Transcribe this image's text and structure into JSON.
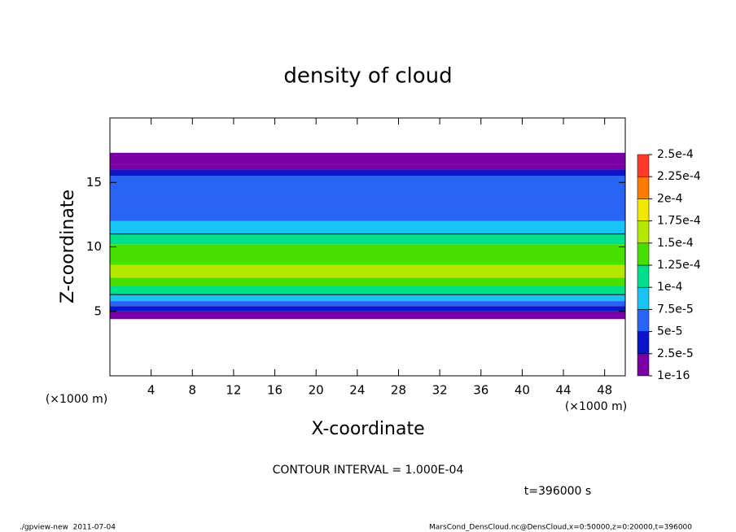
{
  "chart_data": {
    "type": "contour",
    "title": "density of cloud",
    "x_label": "X-coordinate",
    "y_label": "Z-coordinate",
    "x_unit": "(×1000 m)",
    "y_unit": "(×1000 m)",
    "contour_note": "CONTOUR INTERVAL = 1.000E-04",
    "time_label": "t=396000 s",
    "footer_left": "./gpview-new  2011-07-04",
    "footer_right": "MarsCond_DensCloud.nc@DensCloud,x=0:50000,z=0:20000,t=396000",
    "xlim": [
      0,
      50
    ],
    "xticks": [
      4,
      8,
      12,
      16,
      20,
      24,
      28,
      32,
      36,
      40,
      44,
      48
    ],
    "ylim": [
      0,
      20
    ],
    "yticks": [
      5,
      10,
      15
    ],
    "y_edges": [
      4.4,
      5.0,
      5.4,
      5.8,
      6.3,
      7.0,
      7.6,
      8.6,
      9.4,
      10.2,
      11.0,
      12.0,
      13.5,
      15.5,
      16.0,
      16.4,
      17.3
    ],
    "values": [
      1e-05,
      3e-05,
      6e-05,
      8.5e-05,
      0.00011,
      0.000135,
      0.00016,
      0.000145,
      0.00013,
      0.000105,
      8.5e-05,
      7e-05,
      5.5e-05,
      3.5e-05,
      2e-05,
      1e-05
    ],
    "contour_level": 0.0001,
    "levels": [
      {
        "value": 1e-16,
        "label": "1e-16"
      },
      {
        "value": 2.5e-05,
        "label": "2.5e-5"
      },
      {
        "value": 5e-05,
        "label": "5e-5"
      },
      {
        "value": 7.5e-05,
        "label": "7.5e-5"
      },
      {
        "value": 0.0001,
        "label": "1e-4"
      },
      {
        "value": 0.000125,
        "label": "1.25e-4"
      },
      {
        "value": 0.00015,
        "label": "1.5e-4"
      },
      {
        "value": 0.000175,
        "label": "1.75e-4"
      },
      {
        "value": 0.0002,
        "label": "2e-4"
      },
      {
        "value": 0.000225,
        "label": "2.25e-4"
      },
      {
        "value": 0.00025,
        "label": "2.5e-4"
      }
    ],
    "level_colors": [
      "#7a00a6",
      "#0a14c8",
      "#2a64f4",
      "#18c4f4",
      "#00e08a",
      "#48e000",
      "#b4e800",
      "#f0e800",
      "#ff7a00",
      "#ff3a2a",
      "#ff9a9a"
    ]
  }
}
